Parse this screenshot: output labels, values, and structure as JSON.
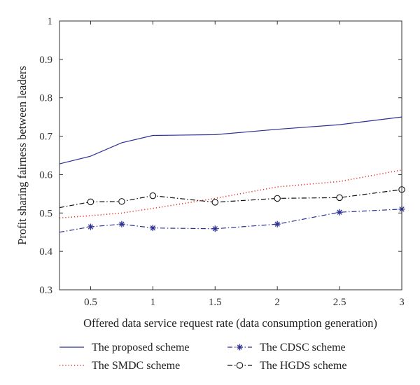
{
  "chart_data": {
    "type": "line",
    "title": "",
    "xlabel": "Offered data service request rate (data consumption generation)",
    "ylabel": "Profit sharing fairness between leaders",
    "xlim": [
      0.25,
      3
    ],
    "ylim": [
      0.3,
      1
    ],
    "xticks": [
      0.5,
      1,
      1.5,
      2,
      2.5,
      3
    ],
    "xtick_labels": [
      "0.5",
      "1",
      "1.5",
      "2",
      "2.5",
      "3"
    ],
    "yticks": [
      0.3,
      0.4,
      0.5,
      0.6,
      0.7,
      0.8,
      0.9,
      1
    ],
    "ytick_labels": [
      "0.3",
      "0.4",
      "0.5",
      "0.6",
      "0.7",
      "0.8",
      "0.9",
      "1"
    ],
    "grid": false,
    "legend_position": "bottom, outside plot, two columns",
    "series": [
      {
        "name": "The proposed scheme",
        "color": "#2e3192",
        "line_style": "solid",
        "marker": "none",
        "x": [
          0.25,
          0.5,
          0.75,
          1,
          1.5,
          2,
          2.5,
          3
        ],
        "y": [
          0.628,
          0.648,
          0.683,
          0.702,
          0.704,
          0.718,
          0.73,
          0.75
        ]
      },
      {
        "name": "The SMDC scheme",
        "color": "#e2332a",
        "line_style": "dotted",
        "marker": "none",
        "x": [
          0.25,
          0.5,
          0.75,
          1,
          1.5,
          2,
          2.5,
          3
        ],
        "y": [
          0.487,
          0.493,
          0.5,
          0.512,
          0.538,
          0.568,
          0.582,
          0.612
        ]
      },
      {
        "name": "The CDSC scheme",
        "color": "#2e3192",
        "line_style": "dashdot",
        "marker": "star",
        "marker_x": [
          0.5,
          0.75,
          1,
          1.5,
          2,
          2.5,
          3
        ],
        "x": [
          0.25,
          0.5,
          0.75,
          1,
          1.5,
          2,
          2.5,
          3
        ],
        "y": [
          0.45,
          0.464,
          0.471,
          0.461,
          0.459,
          0.471,
          0.502,
          0.51
        ]
      },
      {
        "name": "The HGDS scheme",
        "color": "#111111",
        "line_style": "dashdot",
        "marker": "circle",
        "marker_x": [
          0.5,
          0.75,
          1,
          1.5,
          2,
          2.5,
          3
        ],
        "x": [
          0.25,
          0.5,
          0.75,
          1,
          1.5,
          2,
          2.5,
          3
        ],
        "y": [
          0.514,
          0.529,
          0.53,
          0.545,
          0.528,
          0.538,
          0.54,
          0.561
        ]
      }
    ]
  }
}
